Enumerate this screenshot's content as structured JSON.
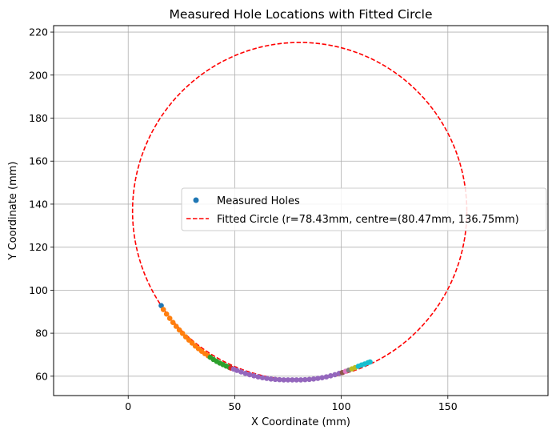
{
  "chart_data": {
    "type": "scatter",
    "title": "Measured Hole Locations with Fitted Circle",
    "xlabel": "X Coordinate (mm)",
    "ylabel": "Y Coordinate (mm)",
    "xlim": [
      -35,
      197
    ],
    "ylim": [
      51,
      223
    ],
    "xticks": [
      0,
      50,
      100,
      150
    ],
    "yticks": [
      60,
      80,
      100,
      120,
      140,
      160,
      180,
      200,
      220
    ],
    "grid": true,
    "legend_position": "center-right",
    "legend": {
      "points_label": "Measured Holes",
      "circle_label": "Fitted Circle (r=78.43mm, centre=(80.47mm, 136.75mm)"
    },
    "fitted_circle": {
      "cx": 80.47,
      "cy": 136.75,
      "r": 78.43,
      "color": "#ff0000",
      "style": "dashed"
    },
    "legend_marker_color": "#1f77b4",
    "series": [
      {
        "color": "#1f77b4",
        "points": [
          [
            15.5,
            92.8
          ]
        ]
      },
      {
        "color": "#ff7f0e",
        "points": [
          [
            16.5,
            91.0
          ],
          [
            18.0,
            88.9
          ],
          [
            19.5,
            86.9
          ],
          [
            21.0,
            85.0
          ],
          [
            22.5,
            83.2
          ],
          [
            24.0,
            81.5
          ],
          [
            25.5,
            79.9
          ],
          [
            27.0,
            78.3
          ],
          [
            28.5,
            76.8
          ],
          [
            30.0,
            75.4
          ],
          [
            31.5,
            74.0
          ],
          [
            33.0,
            72.8
          ],
          [
            34.5,
            71.6
          ],
          [
            36.0,
            70.5
          ],
          [
            37.5,
            69.5
          ]
        ]
      },
      {
        "color": "#2ca02c",
        "points": [
          [
            38.5,
            68.8
          ],
          [
            40.0,
            67.8
          ],
          [
            41.5,
            66.9
          ],
          [
            43.0,
            66.1
          ],
          [
            44.5,
            65.4
          ],
          [
            46.0,
            64.7
          ],
          [
            47.5,
            64.1
          ]
        ]
      },
      {
        "color": "#d62728",
        "points": [
          [
            48.2,
            63.8
          ]
        ]
      },
      {
        "color": "#9467bd",
        "points": [
          [
            49.5,
            63.3
          ],
          [
            51.0,
            62.7
          ],
          [
            53.0,
            62.0
          ],
          [
            55.0,
            61.3
          ],
          [
            57.0,
            60.7
          ],
          [
            59.0,
            60.2
          ],
          [
            61.0,
            59.7
          ],
          [
            63.0,
            59.3
          ],
          [
            65.0,
            59.0
          ],
          [
            67.0,
            58.7
          ],
          [
            69.0,
            58.5
          ],
          [
            71.0,
            58.4
          ],
          [
            73.0,
            58.3
          ],
          [
            75.0,
            58.3
          ],
          [
            77.0,
            58.3
          ],
          [
            79.0,
            58.3
          ],
          [
            81.0,
            58.3
          ],
          [
            83.0,
            58.4
          ],
          [
            85.0,
            58.5
          ],
          [
            87.0,
            58.7
          ],
          [
            89.0,
            59.0
          ],
          [
            91.0,
            59.3
          ],
          [
            93.0,
            59.7
          ],
          [
            95.0,
            60.2
          ],
          [
            97.0,
            60.7
          ],
          [
            99.0,
            61.3
          ]
        ]
      },
      {
        "color": "#8c564b",
        "points": [
          [
            100.5,
            61.7
          ]
        ]
      },
      {
        "color": "#e377c2",
        "points": [
          [
            102.0,
            62.3
          ]
        ]
      },
      {
        "color": "#7f7f7f",
        "points": [
          [
            103.5,
            62.8
          ]
        ]
      },
      {
        "color": "#bcbd22",
        "points": [
          [
            105.0,
            63.4
          ],
          [
            106.5,
            64.0
          ]
        ]
      },
      {
        "color": "#17becf",
        "points": [
          [
            108.0,
            64.6
          ],
          [
            109.5,
            65.2
          ],
          [
            111.0,
            65.7
          ],
          [
            112.5,
            66.3
          ],
          [
            113.5,
            66.6
          ]
        ]
      }
    ]
  }
}
